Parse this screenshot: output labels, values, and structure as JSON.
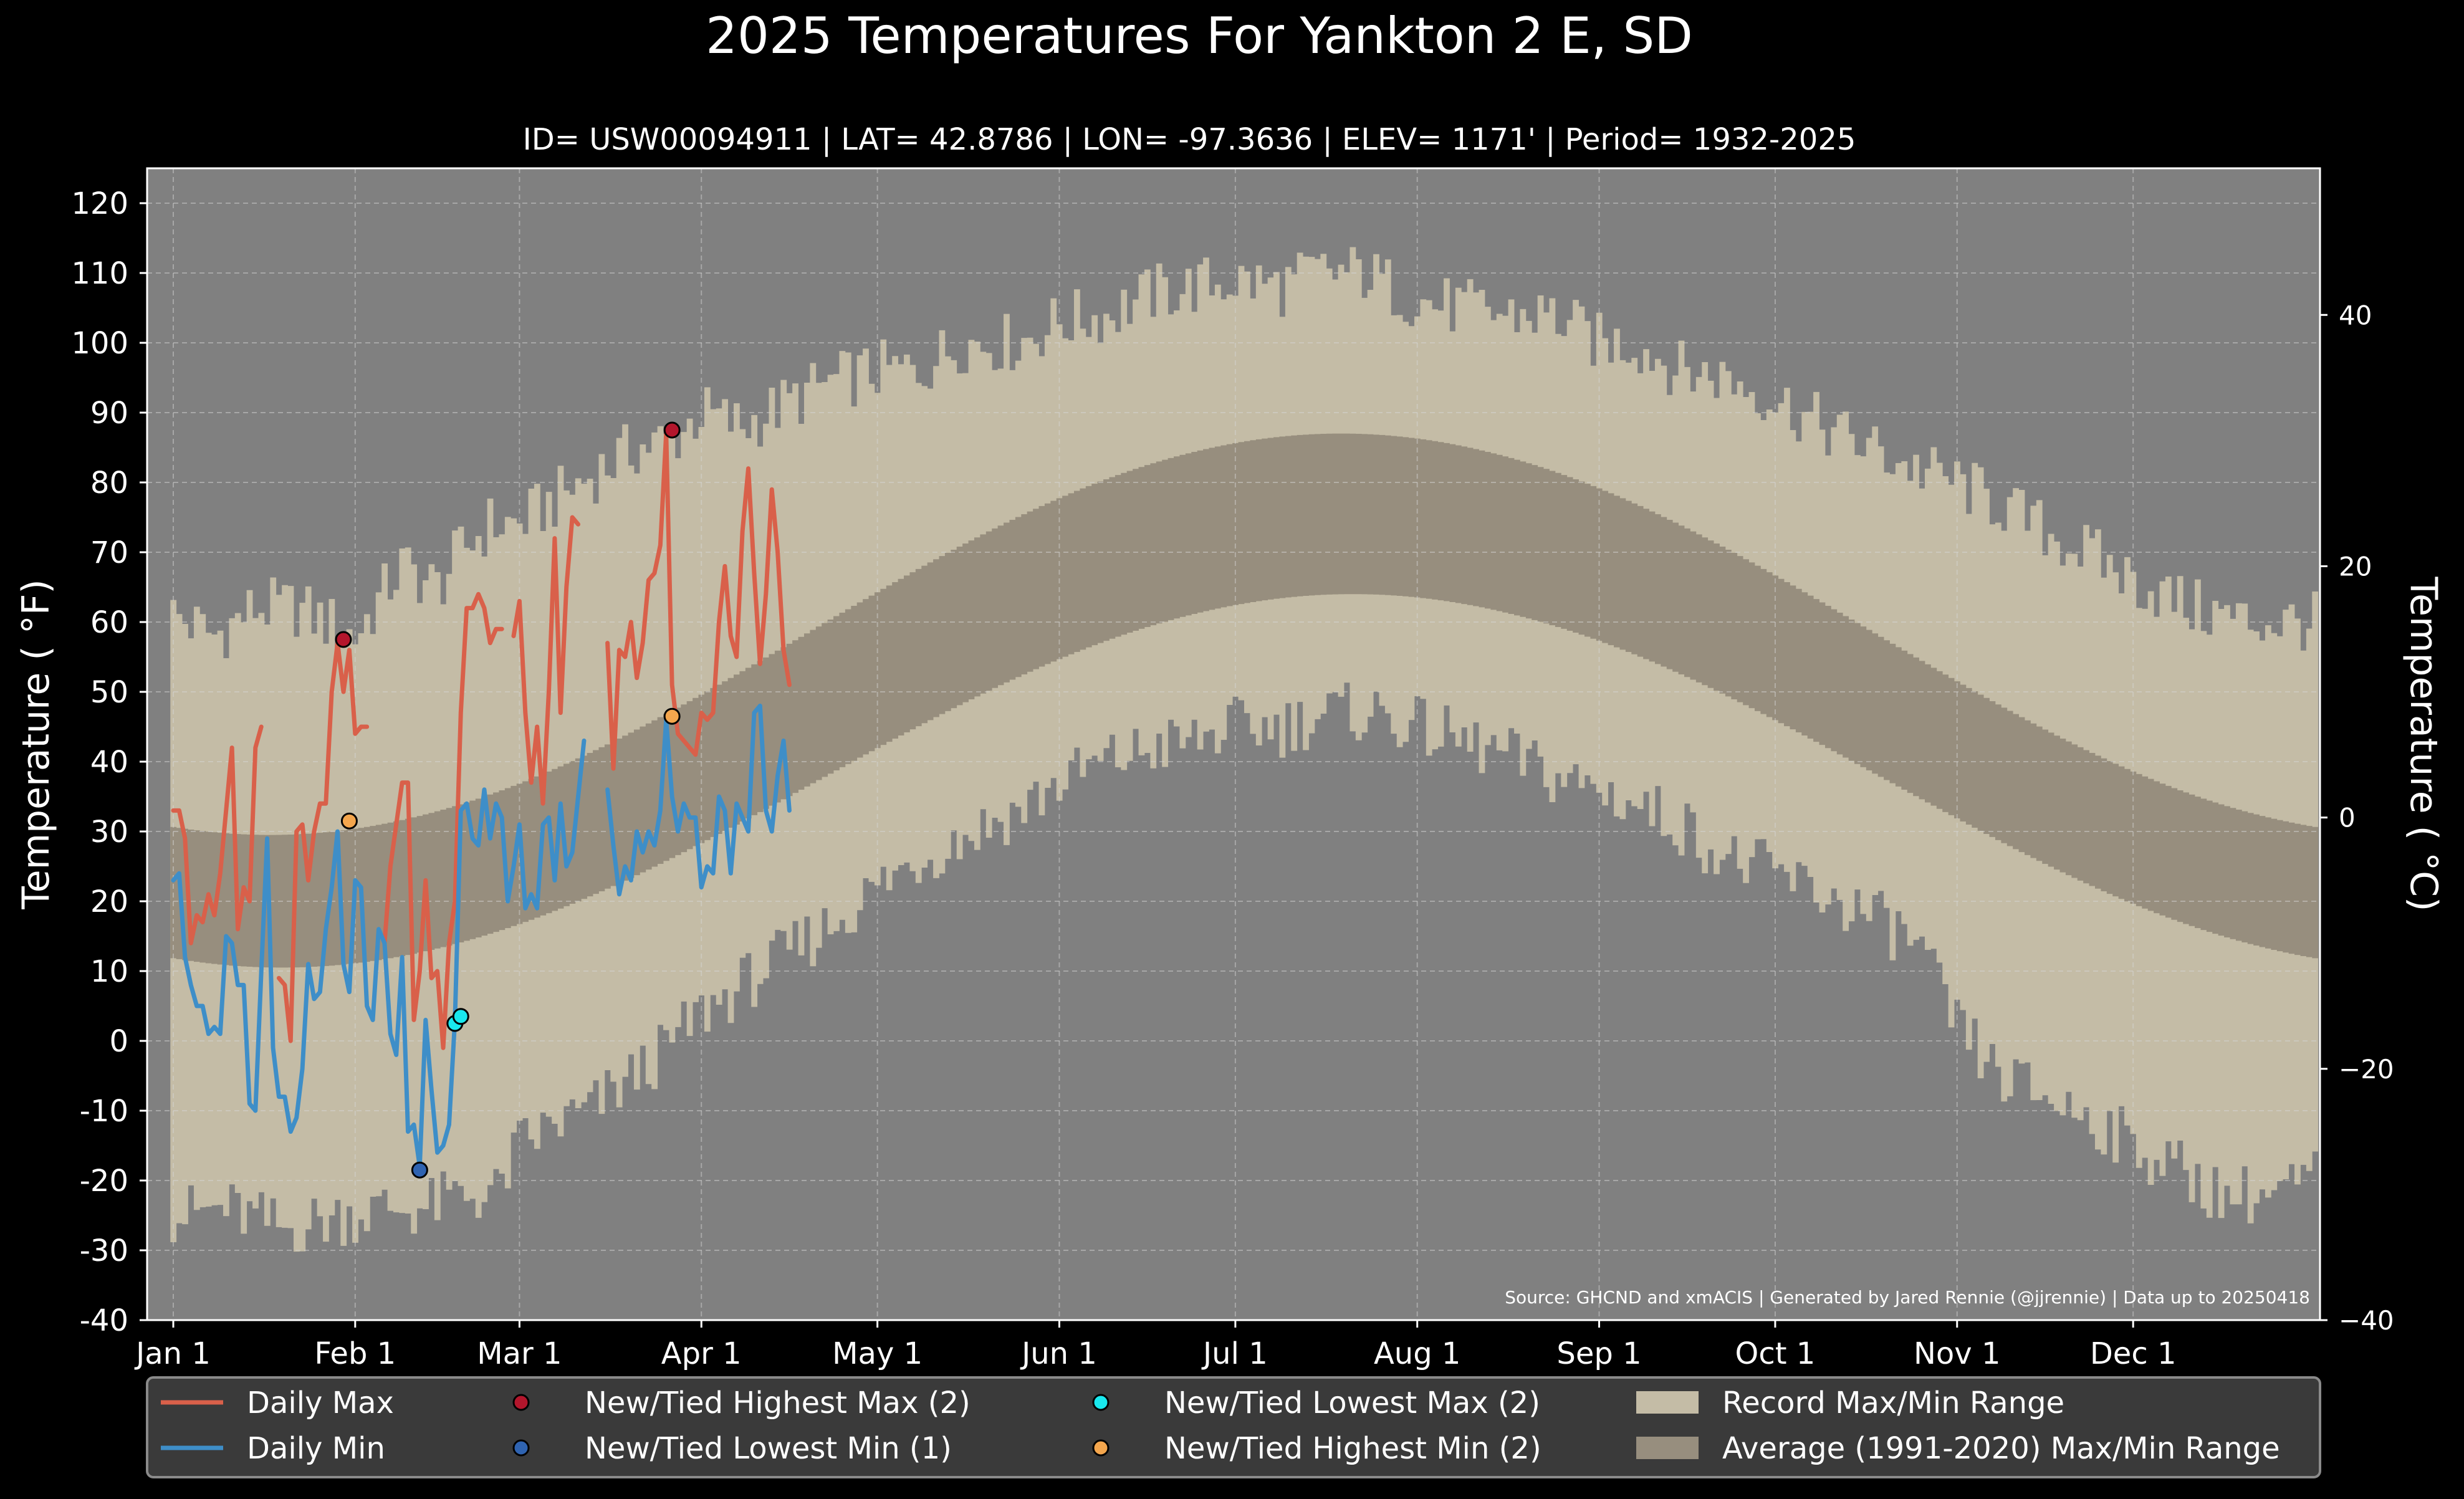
{
  "chart_data": {
    "type": "line",
    "title": "2025 Temperatures For Yankton 2 E, SD",
    "subtitle": "ID= USW00094911 | LAT= 42.8786 | LON= -97.3636 | ELEV= 1171' | Period= 1932-2025",
    "ylabel": "Temperature ( °F)",
    "ylabel_right": "Temperature ( °C)",
    "source": "Source: GHCND and xmACIS | Generated by Jared Rennie (@jjrennie) | Data up to 20250418",
    "ylim": [
      -40,
      125
    ],
    "ylim_c": [
      -40,
      51.67
    ],
    "xlim": [
      1,
      366
    ],
    "grid": true,
    "legend_position": "bottom",
    "y_ticks": [
      -40,
      -30,
      -20,
      -10,
      0,
      10,
      20,
      30,
      40,
      50,
      60,
      70,
      80,
      90,
      100,
      110,
      120
    ],
    "y_tick_labels": [
      "-40",
      "-30",
      "-20",
      "-10",
      "0",
      "10",
      "20",
      "30",
      "40",
      "50",
      "60",
      "70",
      "80",
      "90",
      "100",
      "110",
      "120"
    ],
    "y2_ticks": [
      -40,
      -20,
      0,
      20,
      40
    ],
    "y2_tick_labels": [
      "−40",
      "−20",
      "0",
      "20",
      "40"
    ],
    "x_ticks": [
      1,
      32,
      60,
      91,
      121,
      152,
      182,
      213,
      244,
      274,
      305,
      335
    ],
    "x_tick_labels": [
      "Jan 1",
      "Feb 1",
      "Mar 1",
      "Apr 1",
      "May 1",
      "Jun 1",
      "Jul 1",
      "Aug 1",
      "Sep 1",
      "Oct 1",
      "Nov 1",
      "Dec 1"
    ],
    "legend": [
      {
        "label": "Daily Max",
        "kind": "line",
        "color": "#d9604a"
      },
      {
        "label": "Daily Min",
        "kind": "line",
        "color": "#3e8ec8"
      },
      {
        "label": "New/Tied Highest Max (2)",
        "kind": "marker",
        "color": "#b3162c"
      },
      {
        "label": "New/Tied Lowest Min (1)",
        "kind": "marker",
        "color": "#2f63b0"
      },
      {
        "label": "New/Tied Lowest Max (2)",
        "kind": "marker",
        "color": "#19e8ee"
      },
      {
        "label": "New/Tied Highest Min (2)",
        "kind": "marker",
        "color": "#f4a64d"
      },
      {
        "label": "Record Max/Min Range",
        "kind": "patch",
        "color": "#c4bca6"
      },
      {
        "label": "Average (1991-2020) Max/Min Range",
        "kind": "patch",
        "color": "#978e7e"
      }
    ],
    "record_max_points": [
      [
        1,
        61
      ],
      [
        8,
        58
      ],
      [
        15,
        62
      ],
      [
        22,
        62
      ],
      [
        32,
        58
      ],
      [
        40,
        68
      ],
      [
        46,
        65
      ],
      [
        50,
        70
      ],
      [
        55,
        74
      ],
      [
        60,
        74
      ],
      [
        67,
        78
      ],
      [
        74,
        82
      ],
      [
        80,
        85
      ],
      [
        86,
        86
      ],
      [
        91,
        90
      ],
      [
        98,
        88
      ],
      [
        105,
        91
      ],
      [
        112,
        94
      ],
      [
        121,
        96
      ],
      [
        128,
        96
      ],
      [
        135,
        100
      ],
      [
        145,
        100
      ],
      [
        152,
        103
      ],
      [
        160,
        104
      ],
      [
        168,
        107
      ],
      [
        175,
        108
      ],
      [
        182,
        109
      ],
      [
        190,
        108
      ],
      [
        196,
        110
      ],
      [
        204,
        110
      ],
      [
        213,
        106
      ],
      [
        220,
        105
      ],
      [
        228,
        104
      ],
      [
        236,
        104
      ],
      [
        244,
        100
      ],
      [
        250,
        100
      ],
      [
        258,
        96
      ],
      [
        266,
        95
      ],
      [
        274,
        92
      ],
      [
        282,
        88
      ],
      [
        290,
        85
      ],
      [
        298,
        82
      ],
      [
        305,
        80
      ],
      [
        312,
        77
      ],
      [
        320,
        73
      ],
      [
        327,
        70
      ],
      [
        335,
        66
      ],
      [
        345,
        62
      ],
      [
        355,
        60
      ],
      [
        366,
        60
      ]
    ],
    "record_min_points": [
      [
        1,
        -25
      ],
      [
        10,
        -24
      ],
      [
        20,
        -27
      ],
      [
        30,
        -25
      ],
      [
        38,
        -24
      ],
      [
        44,
        -24
      ],
      [
        50,
        -22
      ],
      [
        56,
        -22
      ],
      [
        60,
        -15
      ],
      [
        66,
        -12
      ],
      [
        72,
        -10
      ],
      [
        78,
        -6
      ],
      [
        84,
        -2
      ],
      [
        91,
        4
      ],
      [
        98,
        8
      ],
      [
        105,
        12
      ],
      [
        112,
        16
      ],
      [
        121,
        22
      ],
      [
        128,
        26
      ],
      [
        135,
        29
      ],
      [
        145,
        33
      ],
      [
        152,
        37
      ],
      [
        160,
        40
      ],
      [
        168,
        42
      ],
      [
        175,
        43
      ],
      [
        182,
        45
      ],
      [
        190,
        45
      ],
      [
        198,
        47
      ],
      [
        206,
        47
      ],
      [
        213,
        45
      ],
      [
        220,
        43
      ],
      [
        228,
        41
      ],
      [
        236,
        38
      ],
      [
        244,
        36
      ],
      [
        250,
        34
      ],
      [
        258,
        31
      ],
      [
        266,
        26
      ],
      [
        274,
        24
      ],
      [
        282,
        21
      ],
      [
        290,
        18
      ],
      [
        298,
        14
      ],
      [
        305,
        2
      ],
      [
        312,
        -5
      ],
      [
        320,
        -8
      ],
      [
        328,
        -11
      ],
      [
        335,
        -15
      ],
      [
        342,
        -18
      ],
      [
        350,
        -22
      ],
      [
        358,
        -22
      ],
      [
        366,
        -20
      ]
    ],
    "avg_high": {
      "min": 29.5,
      "max": 87,
      "peak_day": 200
    },
    "avg_low": {
      "min": 10.5,
      "max": 64,
      "peak_day": 202
    },
    "series": [
      {
        "name": "Daily Max",
        "color": "#d9604a",
        "x": [
          1,
          2,
          3,
          4,
          5,
          6,
          7,
          8,
          9,
          10,
          11,
          12,
          13,
          14,
          15,
          16,
          17,
          18,
          19,
          20,
          21,
          22,
          23,
          24,
          25,
          26,
          27,
          28,
          29,
          30,
          31,
          32,
          33,
          34,
          35,
          36,
          37,
          38,
          39,
          40,
          41,
          42,
          43,
          44,
          45,
          46,
          47,
          48,
          49,
          50,
          51,
          52,
          53,
          54,
          55,
          56,
          57,
          58,
          59,
          60,
          61,
          62,
          63,
          64,
          65,
          66,
          67,
          68,
          69,
          70,
          71,
          72,
          73,
          74,
          75,
          76,
          77,
          78,
          79,
          80,
          81,
          82,
          83,
          84,
          85,
          86,
          87,
          88,
          89,
          90,
          91,
          92,
          93,
          94,
          95,
          96,
          97,
          98,
          99,
          100,
          101,
          102,
          103,
          104,
          105,
          106,
          107,
          108
        ],
        "y": [
          33,
          33,
          29,
          14,
          18,
          17,
          21,
          18,
          24,
          33,
          42,
          16,
          22,
          20,
          42,
          45,
          null,
          null,
          9,
          8,
          0,
          30,
          31,
          23,
          30,
          34,
          34,
          50,
          57,
          50,
          56,
          44,
          45,
          45,
          null,
          null,
          14,
          25,
          31,
          37,
          37,
          3,
          10,
          23,
          9,
          10,
          -1,
          14,
          20,
          47,
          62,
          62,
          64,
          62,
          57,
          59,
          59,
          null,
          58,
          63,
          47,
          37,
          45,
          34,
          50,
          72,
          47,
          65,
          75,
          74,
          null,
          null,
          null,
          null,
          57,
          39,
          56,
          55,
          60,
          52,
          57,
          66,
          67,
          71,
          87,
          51,
          44,
          43,
          42,
          41,
          47,
          46,
          47,
          60,
          68,
          58,
          55,
          73,
          82,
          67,
          54,
          64,
          79,
          70,
          56,
          51,
          null,
          null
        ],
        "note": "x is day of year"
      },
      {
        "name": "Daily Min",
        "color": "#3e8ec8",
        "x": [
          1,
          2,
          3,
          4,
          5,
          6,
          7,
          8,
          9,
          10,
          11,
          12,
          13,
          14,
          15,
          16,
          17,
          18,
          19,
          20,
          21,
          22,
          23,
          24,
          25,
          26,
          27,
          28,
          29,
          30,
          31,
          32,
          33,
          34,
          35,
          36,
          37,
          38,
          39,
          40,
          41,
          42,
          43,
          44,
          45,
          46,
          47,
          48,
          49,
          50,
          51,
          52,
          53,
          54,
          55,
          56,
          57,
          58,
          59,
          60,
          61,
          62,
          63,
          64,
          65,
          66,
          67,
          68,
          69,
          70,
          71,
          72,
          73,
          74,
          75,
          76,
          77,
          78,
          79,
          80,
          81,
          82,
          83,
          84,
          85,
          86,
          87,
          88,
          89,
          90,
          91,
          92,
          93,
          94,
          95,
          96,
          97,
          98,
          99,
          100,
          101,
          102,
          103,
          104,
          105,
          106,
          107,
          108
        ],
        "y": [
          23,
          24,
          12,
          8,
          5,
          5,
          1,
          2,
          1,
          15,
          14,
          8,
          8,
          -9,
          -10,
          10,
          29,
          -1,
          -8,
          -8,
          -13,
          -11,
          -4,
          11,
          6,
          7,
          16,
          22,
          30,
          11,
          7,
          23,
          22,
          5,
          3,
          16,
          14,
          1,
          -2,
          12,
          -13,
          -12,
          -18,
          3,
          -7,
          -16,
          -15,
          -12,
          3,
          33,
          34,
          29,
          28,
          36,
          29,
          34,
          32,
          20,
          25,
          31,
          19,
          21,
          19,
          31,
          32,
          23,
          34,
          25,
          27,
          35,
          43,
          null,
          null,
          null,
          36,
          28,
          21,
          25,
          23,
          30,
          27,
          30,
          28,
          33,
          46,
          35,
          30,
          34,
          32,
          32,
          22,
          25,
          24,
          35,
          33,
          24,
          34,
          32,
          30,
          47,
          48,
          33,
          30,
          38,
          43,
          33,
          null,
          null
        ]
      }
    ],
    "records": [
      {
        "type": "New/Tied Highest Max",
        "day": 30,
        "value": 57.5,
        "color": "#b3162c"
      },
      {
        "type": "New/Tied Highest Max",
        "day": 86,
        "value": 87.5,
        "color": "#b3162c"
      },
      {
        "type": "New/Tied Lowest Min",
        "day": 43,
        "value": -18.5,
        "color": "#2f63b0"
      },
      {
        "type": "New/Tied Lowest Max",
        "day": 49,
        "value": 2.5,
        "color": "#19e8ee"
      },
      {
        "type": "New/Tied Lowest Max",
        "day": 50,
        "value": 3.5,
        "color": "#19e8ee"
      },
      {
        "type": "New/Tied Highest Min",
        "day": 31,
        "value": 31.5,
        "color": "#f4a64d"
      },
      {
        "type": "New/Tied Highest Min",
        "day": 86,
        "value": 46.5,
        "color": "#f4a64d"
      }
    ]
  }
}
